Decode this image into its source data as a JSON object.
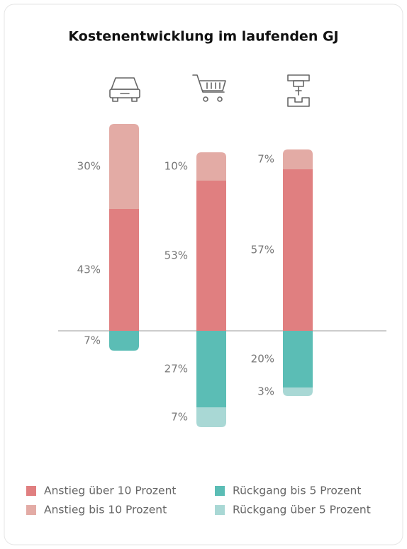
{
  "chart_data": {
    "type": "diverging-stacked-bar",
    "title": "Kostenentwicklung im laufenden GJ",
    "series": [
      {
        "name": "Anstieg über 10 Prozent",
        "color": "#e07f80",
        "values": [
          43,
          53,
          57
        ],
        "value_labels": [
          "43%",
          "53%",
          "57%"
        ]
      },
      {
        "name": "Anstieg bis 10 Prozent",
        "color": "#e3aba5",
        "values": [
          30,
          10,
          7
        ],
        "value_labels": [
          "30%",
          "10%",
          "7%"
        ]
      },
      {
        "name": "Rückgang bis 5 Prozent",
        "color": "#5bbdb5",
        "values": [
          -7,
          -27,
          -20
        ],
        "value_labels": [
          "7%",
          "27%",
          "20%"
        ]
      },
      {
        "name": "Rückgang über 5 Prozent",
        "color": "#a9d8d5",
        "values": [
          null,
          -7,
          -3
        ],
        "value_labels": [
          null,
          "7%",
          "3%"
        ]
      }
    ]
  }
}
